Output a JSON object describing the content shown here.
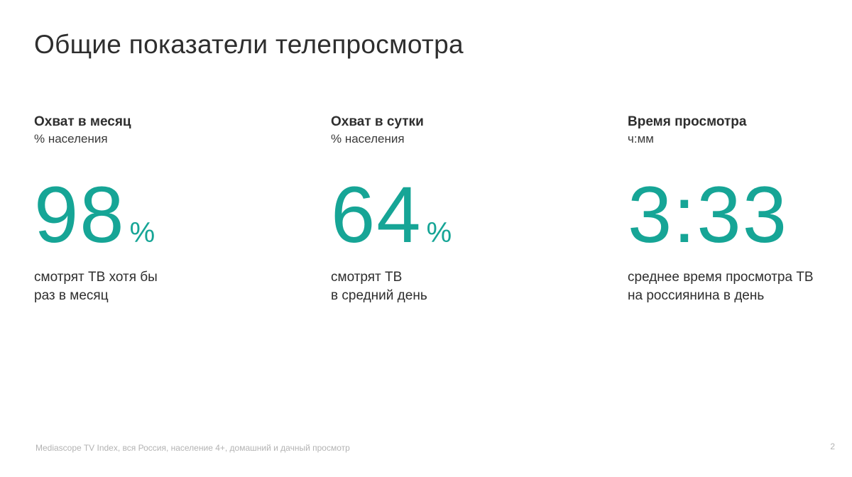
{
  "title": "Общие показатели телепросмотра",
  "metrics": [
    {
      "heading": "Охват в месяц",
      "unit": "% населения",
      "value": "98",
      "suffix": "%",
      "desc_line1": "смотрят ТВ хотя бы",
      "desc_line2": "раз в месяц"
    },
    {
      "heading": "Охват в сутки",
      "unit": "% населения",
      "value": "64",
      "suffix": "%",
      "desc_line1": "смотрят ТВ",
      "desc_line2": "в средний день"
    },
    {
      "heading": "Время просмотра",
      "unit": "ч:мм",
      "value": "3:33",
      "suffix": "",
      "desc_line1": "среднее время просмотра ТВ",
      "desc_line2": "на россиянина в день"
    }
  ],
  "footer": {
    "source": "Mediascope TV Index, вся Россия, население 4+, домашний и дачный просмотр",
    "page_number": "2"
  },
  "colors": {
    "accent": "#16a596",
    "text": "#2e2e2e",
    "muted": "#b3b3b3"
  }
}
